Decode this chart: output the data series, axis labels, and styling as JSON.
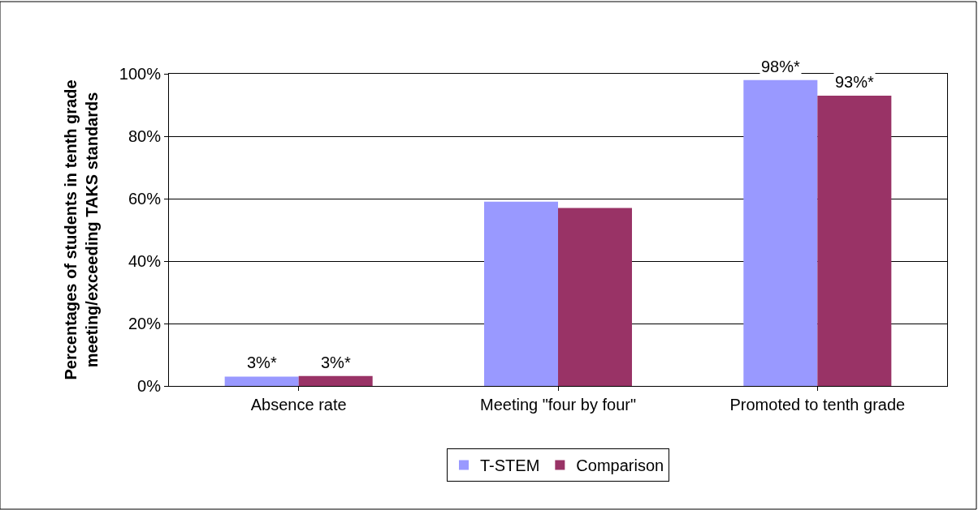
{
  "chart_data": {
    "type": "bar",
    "ylabel": "Percentages of students in tenth grade meeting/exceeding TAKS standards",
    "categories": [
      "Absence rate",
      "Meeting \"four by four\"",
      "Promoted to tenth grade"
    ],
    "series": [
      {
        "name": "T-STEM",
        "color": "#9999ff",
        "values": [
          3,
          59,
          98
        ],
        "value_labels": [
          "3%*",
          null,
          "98%*"
        ]
      },
      {
        "name": "Comparison",
        "color": "#993366",
        "values": [
          3.2,
          57,
          93
        ],
        "value_labels": [
          "3%*",
          null,
          "93%*"
        ]
      }
    ],
    "ylim": [
      0,
      100
    ],
    "yticks": [
      {
        "value": 0,
        "label": "0%"
      },
      {
        "value": 20,
        "label": "20%"
      },
      {
        "value": 40,
        "label": "40%"
      },
      {
        "value": 60,
        "label": "60%"
      },
      {
        "value": 80,
        "label": "80%"
      },
      {
        "value": 100,
        "label": "100%"
      }
    ],
    "grid": "y",
    "legend": "bottom"
  }
}
